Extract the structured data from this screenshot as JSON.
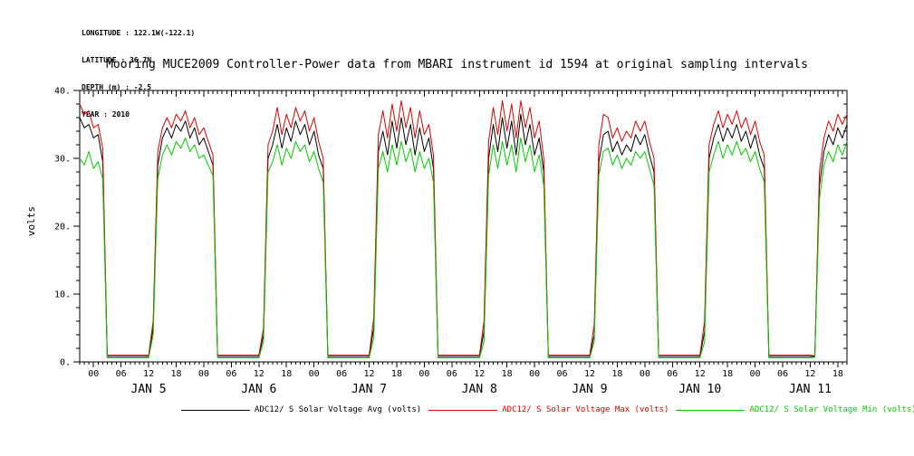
{
  "header_info": {
    "lines": [
      "LONGITUDE : 122.1W(-122.1)",
      "LATITUDE : 36.7N",
      "DEPTH (m) : -2.5",
      "YEAR : 2010"
    ]
  },
  "title": "Mooring MUCE2009 Controller-Power data from MBARI instrument id 1594 at original sampling intervals",
  "y_axis_label": "volts",
  "colors": {
    "avg": "#000000",
    "max": "#dd0000",
    "min": "#00cc00",
    "axis": "#000000",
    "background": "#ffffff"
  },
  "chart_data": {
    "type": "line",
    "title": "Mooring MUCE2009 Controller-Power data from MBARI instrument id 1594 at original sampling intervals",
    "xlabel": "",
    "ylabel": "volts",
    "ylim": [
      0,
      40
    ],
    "y_major_ticks": [
      {
        "value": 0,
        "label": "0."
      },
      {
        "value": 10,
        "label": "10."
      },
      {
        "value": 20,
        "label": "20."
      },
      {
        "value": 30,
        "label": "30."
      },
      {
        "value": 40,
        "label": "40."
      }
    ],
    "y_minor_step": 2,
    "x_lim": [
      -3,
      164
    ],
    "x_major_step": 6,
    "x_minor_step": 1,
    "x_tick_label_cycle": [
      "00",
      "06",
      "12",
      "18"
    ],
    "x_tick_range": [
      0,
      162
    ],
    "day_labels": [
      {
        "label": "JAN 5",
        "hour": 12
      },
      {
        "label": "JAN 6",
        "hour": 36
      },
      {
        "label": "JAN 7",
        "hour": 60
      },
      {
        "label": "JAN 8",
        "hour": 84
      },
      {
        "label": "JAN 9",
        "hour": 108
      },
      {
        "label": "JAN 10",
        "hour": 132
      },
      {
        "label": "JAN 11",
        "hour": 156
      }
    ],
    "grid": false,
    "legend_position": "bottom",
    "x_start": -3,
    "x_step": 1,
    "series": [
      {
        "name": "ADC12/ S Solar Voltage Avg (volts)",
        "color": "#000000",
        "values": [
          36,
          34.5,
          35,
          33,
          33.5,
          29.5,
          0.8,
          0.8,
          0.8,
          0.8,
          0.8,
          0.8,
          0.8,
          0.8,
          0.8,
          0.8,
          5,
          29,
          33,
          34.5,
          33,
          35,
          34,
          35.5,
          33,
          34.5,
          32,
          33,
          31,
          29,
          0.8,
          0.8,
          0.8,
          0.8,
          0.8,
          0.8,
          0.8,
          0.8,
          0.8,
          0.8,
          4,
          30,
          32,
          35,
          31.5,
          34.5,
          32.5,
          35.5,
          33.5,
          35,
          32,
          34,
          30.5,
          28.5,
          0.8,
          0.8,
          0.8,
          0.8,
          0.8,
          0.8,
          0.8,
          0.8,
          0.8,
          0.8,
          5,
          31,
          34,
          30.5,
          35.5,
          31.5,
          36,
          32,
          35,
          30.5,
          34.5,
          31,
          33,
          28.5,
          0.8,
          0.8,
          0.8,
          0.8,
          0.8,
          0.8,
          0.8,
          0.8,
          0.8,
          0.8,
          4.5,
          30,
          35,
          31,
          36,
          31.5,
          35.5,
          30.5,
          36.5,
          32,
          35,
          30.5,
          33,
          28,
          0.8,
          0.8,
          0.8,
          0.8,
          0.8,
          0.8,
          0.8,
          0.8,
          0.8,
          0.8,
          4,
          29.5,
          33.5,
          34,
          31,
          32.5,
          30.5,
          32,
          31,
          33.5,
          32,
          33.5,
          30.5,
          28,
          0.8,
          0.8,
          0.8,
          0.8,
          0.8,
          0.8,
          0.8,
          0.8,
          0.8,
          0.8,
          4.5,
          30,
          33,
          35,
          32.5,
          34.5,
          33,
          35,
          32.5,
          34,
          31.5,
          33.5,
          30.5,
          28.5,
          0.8,
          0.8,
          0.8,
          0.8,
          0.8,
          0.8,
          0.8,
          0.8,
          0.8,
          0.8,
          0.8,
          26,
          31,
          33.5,
          32,
          34.5,
          33,
          35
        ]
      },
      {
        "name": "ADC12/ S Solar Voltage Max (volts)",
        "color": "#dd0000",
        "values": [
          38,
          36.5,
          37,
          34.5,
          35,
          31.5,
          1,
          1,
          1,
          1,
          1,
          1,
          1,
          1,
          1,
          1,
          6,
          31,
          34.5,
          36,
          34.5,
          36.5,
          35.5,
          37,
          34.5,
          36,
          33.5,
          34.5,
          32.5,
          30.5,
          1,
          1,
          1,
          1,
          1,
          1,
          1,
          1,
          1,
          1,
          5,
          32,
          34,
          37.5,
          33.5,
          36.5,
          34.5,
          37.5,
          35.5,
          37,
          34,
          36,
          32.5,
          30,
          1,
          1,
          1,
          1,
          1,
          1,
          1,
          1,
          1,
          1,
          6.5,
          33.5,
          37,
          33,
          38,
          34,
          38.5,
          34.5,
          37.5,
          33,
          37,
          33.5,
          35,
          30.5,
          1,
          1,
          1,
          1,
          1,
          1,
          1,
          1,
          1,
          1,
          6,
          32.5,
          37.5,
          33.5,
          38.5,
          34,
          38,
          33,
          38.5,
          34.5,
          37.5,
          33,
          35.5,
          30,
          1,
          1,
          1,
          1,
          1,
          1,
          1,
          1,
          1,
          1,
          5.5,
          32,
          36.5,
          36,
          33,
          34.5,
          32.5,
          34,
          33,
          35.5,
          34,
          35.5,
          32.5,
          30,
          1,
          1,
          1,
          1,
          1,
          1,
          1,
          1,
          1,
          1,
          6,
          32,
          35,
          37,
          34.5,
          36.5,
          35,
          37,
          34.5,
          36,
          33.5,
          35.5,
          32.5,
          30.5,
          1,
          1,
          1,
          1,
          1,
          1,
          1,
          1,
          1,
          1,
          0.9,
          28,
          33,
          35.5,
          34,
          36.5,
          35,
          36.5
        ]
      },
      {
        "name": "ADC12/ S Solar Voltage Min (volts)",
        "color": "#00cc00",
        "values": [
          30,
          29,
          31,
          28.5,
          29.5,
          27,
          0.6,
          0.6,
          0.6,
          0.6,
          0.6,
          0.6,
          0.6,
          0.6,
          0.6,
          0.6,
          4,
          27,
          30.5,
          32,
          30.5,
          32.5,
          31.5,
          33,
          31,
          32,
          30,
          30.5,
          29,
          27.5,
          0.6,
          0.6,
          0.6,
          0.6,
          0.6,
          0.6,
          0.6,
          0.6,
          0.6,
          0.6,
          3,
          28,
          29.5,
          32,
          29,
          31.5,
          30,
          32.5,
          31,
          32,
          29.5,
          31,
          28.5,
          26.5,
          0.6,
          0.6,
          0.6,
          0.6,
          0.6,
          0.6,
          0.6,
          0.6,
          0.6,
          0.6,
          3.5,
          28.5,
          31,
          28,
          32,
          29,
          32.5,
          29.5,
          31.5,
          28,
          31,
          28.5,
          30,
          26.5,
          0.6,
          0.6,
          0.6,
          0.6,
          0.6,
          0.6,
          0.6,
          0.6,
          0.6,
          0.6,
          3,
          27.5,
          32,
          28.5,
          32.5,
          29,
          32,
          28,
          33,
          29.5,
          32,
          28,
          30.5,
          26,
          0.6,
          0.6,
          0.6,
          0.6,
          0.6,
          0.6,
          0.6,
          0.6,
          0.6,
          0.6,
          3,
          27.5,
          31,
          31.5,
          29,
          30.5,
          28.5,
          30,
          29,
          31,
          30,
          31,
          28.5,
          26,
          0.6,
          0.6,
          0.6,
          0.6,
          0.6,
          0.6,
          0.6,
          0.6,
          0.6,
          0.6,
          3,
          28,
          30.5,
          32.5,
          30,
          32,
          30.5,
          32.5,
          30.5,
          31.5,
          29.5,
          31,
          28.5,
          26.5,
          0.6,
          0.6,
          0.6,
          0.6,
          0.6,
          0.6,
          0.6,
          0.6,
          0.6,
          0.6,
          0.7,
          24,
          29,
          31,
          29.5,
          32,
          30.5,
          32.5
        ]
      }
    ]
  }
}
